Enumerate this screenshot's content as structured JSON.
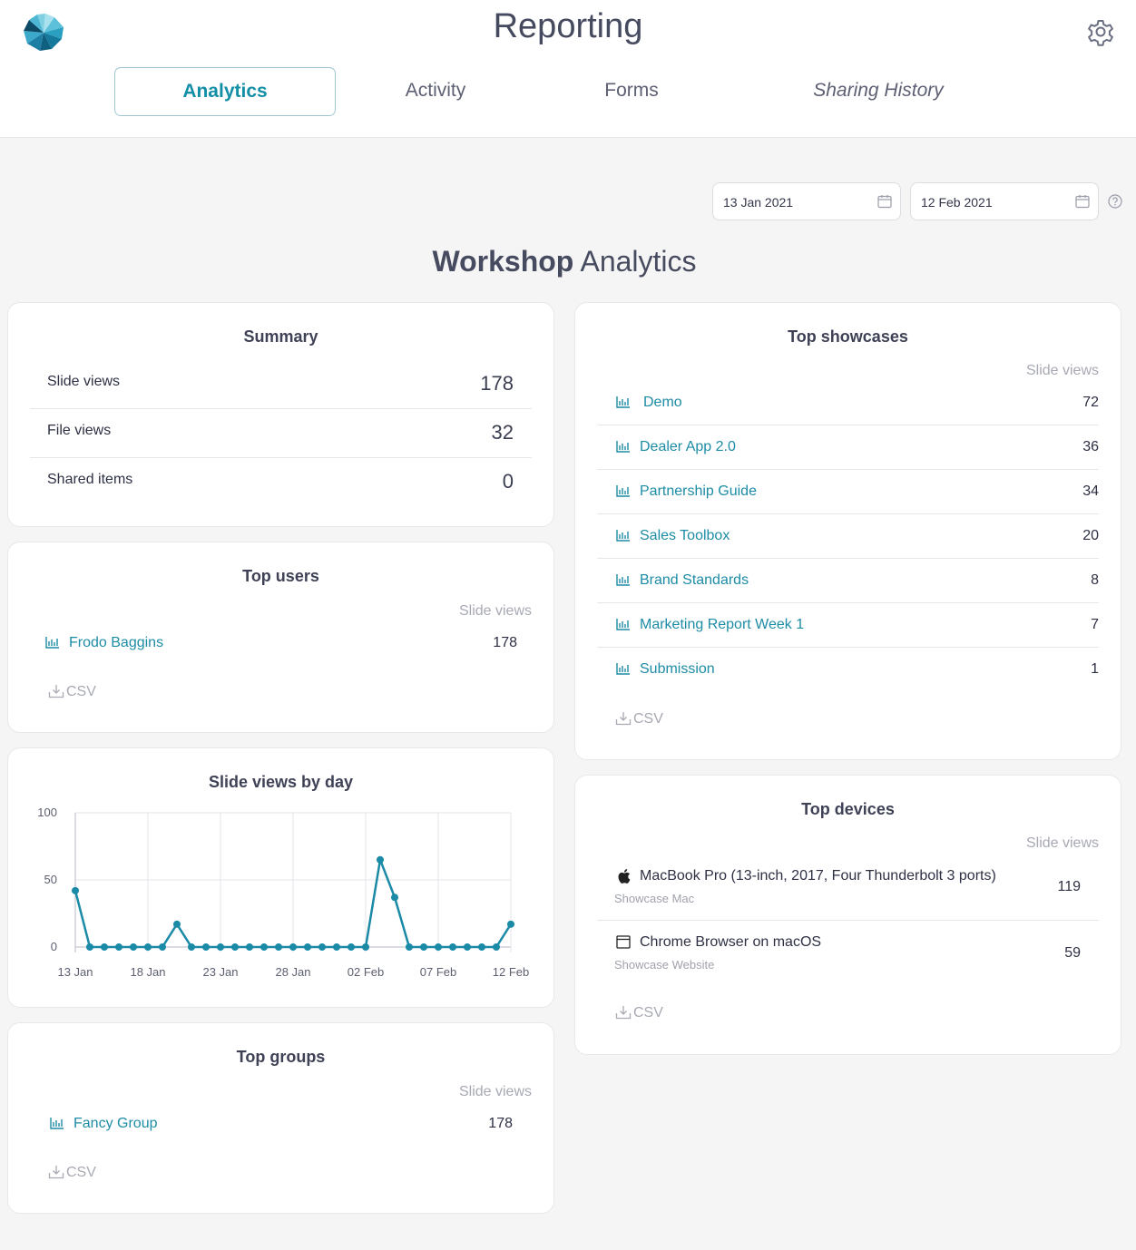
{
  "header": {
    "title": "Reporting",
    "tabs": [
      {
        "label": "Analytics",
        "active": true
      },
      {
        "label": "Activity"
      },
      {
        "label": "Forms"
      },
      {
        "label": "Sharing History"
      }
    ]
  },
  "date_range": {
    "start": "13 Jan 2021",
    "end": "12 Feb 2021"
  },
  "heading": {
    "bold": "Workshop",
    "rest": "Analytics"
  },
  "summary": {
    "title": "Summary",
    "rows": [
      {
        "label": "Slide views",
        "value": "178"
      },
      {
        "label": "File views",
        "value": "32"
      },
      {
        "label": "Shared items",
        "value": "0"
      }
    ]
  },
  "top_users": {
    "title": "Top users",
    "column": "Slide views",
    "rows": [
      {
        "name": "Frodo Baggins",
        "value": "178"
      }
    ],
    "csv": "CSV"
  },
  "slide_views_chart": {
    "title": "Slide views by day"
  },
  "chart_data": {
    "type": "line",
    "title": "Slide views by day",
    "x": [
      "13 Jan",
      "14 Jan",
      "15 Jan",
      "16 Jan",
      "17 Jan",
      "18 Jan",
      "19 Jan",
      "20 Jan",
      "21 Jan",
      "22 Jan",
      "23 Jan",
      "24 Jan",
      "25 Jan",
      "26 Jan",
      "27 Jan",
      "28 Jan",
      "29 Jan",
      "30 Jan",
      "31 Jan",
      "01 Feb",
      "02 Feb",
      "03 Feb",
      "04 Feb",
      "05 Feb",
      "06 Feb",
      "07 Feb",
      "08 Feb",
      "09 Feb",
      "10 Feb",
      "11 Feb",
      "12 Feb"
    ],
    "series": [
      {
        "values": [
          42,
          0,
          0,
          0,
          0,
          0,
          0,
          17,
          0,
          0,
          0,
          0,
          0,
          0,
          0,
          0,
          0,
          0,
          0,
          0,
          0,
          65,
          37,
          0,
          0,
          0,
          0,
          0,
          0,
          0,
          17
        ]
      }
    ],
    "x_tick_labels": [
      "13 Jan",
      "18 Jan",
      "23 Jan",
      "28 Jan",
      "02 Feb",
      "07 Feb",
      "12 Feb"
    ],
    "y_ticks": [
      0,
      50,
      100
    ],
    "ylim": [
      0,
      100
    ],
    "grid": true,
    "color": "#1a8aa6"
  },
  "top_groups": {
    "title": "Top groups",
    "column": "Slide views",
    "rows": [
      {
        "name": "Fancy Group",
        "value": "178"
      }
    ],
    "csv": "CSV"
  },
  "top_showcases": {
    "title": "Top showcases",
    "column": "Slide views",
    "rows": [
      {
        "name": "Demo",
        "value": "72"
      },
      {
        "name": "Dealer App 2.0",
        "value": "36"
      },
      {
        "name": "Partnership Guide",
        "value": "34"
      },
      {
        "name": "Sales Toolbox",
        "value": "20"
      },
      {
        "name": "Brand Standards",
        "value": "8"
      },
      {
        "name": "Marketing Report Week 1",
        "value": "7"
      },
      {
        "name": "Submission",
        "value": "1"
      }
    ],
    "csv": "CSV"
  },
  "top_devices": {
    "title": "Top devices",
    "column": "Slide views",
    "rows": [
      {
        "name": "MacBook Pro (13-inch, 2017, Four Thunderbolt 3 ports)",
        "sub": "Showcase Mac",
        "value": "119",
        "icon": "apple-icon"
      },
      {
        "name": "Chrome Browser on macOS",
        "sub": "Showcase Website",
        "value": "59",
        "icon": "browser-window-icon"
      }
    ],
    "csv": "CSV"
  },
  "colors": {
    "accent": "#138ea7",
    "link": "#1d8ca5",
    "background": "#f5f5f6"
  }
}
